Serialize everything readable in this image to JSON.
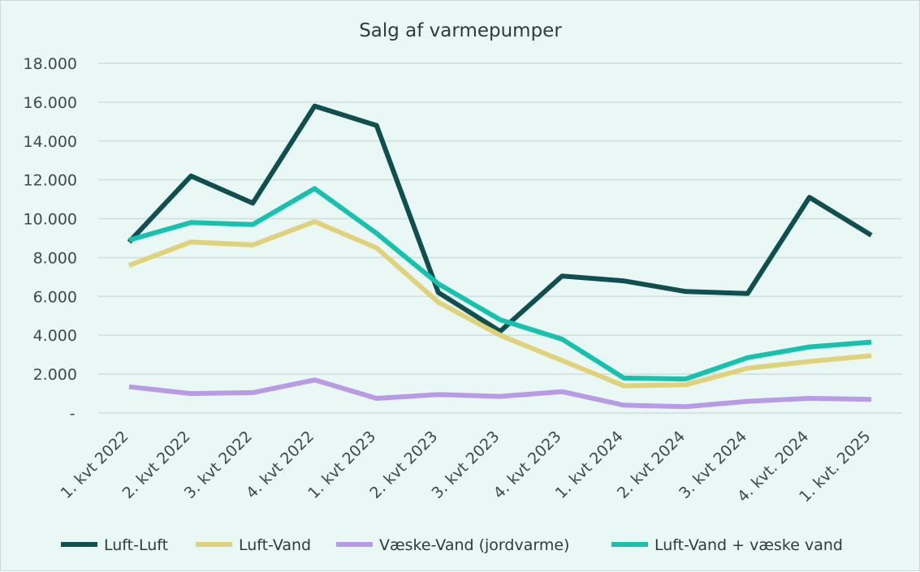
{
  "chart_data": {
    "type": "line",
    "title": "Salg af varmepumper",
    "xlabel": "",
    "ylabel": "",
    "ylim": [
      0,
      18000
    ],
    "y_ticks": [
      {
        "value": 0,
        "label": "-"
      },
      {
        "value": 2000,
        "label": "2.000"
      },
      {
        "value": 4000,
        "label": "4.000"
      },
      {
        "value": 6000,
        "label": "6.000"
      },
      {
        "value": 8000,
        "label": "8.000"
      },
      {
        "value": 10000,
        "label": "10.000"
      },
      {
        "value": 12000,
        "label": "12.000"
      },
      {
        "value": 14000,
        "label": "14.000"
      },
      {
        "value": 16000,
        "label": "16.000"
      },
      {
        "value": 18000,
        "label": "18.000"
      }
    ],
    "categories": [
      "1. kvt 2022",
      "2. kvt 2022",
      "3. kvt 2022",
      "4. kvt 2022",
      "1. kvt 2023",
      "2. kvt 2023",
      "3. kvt 2023",
      "4. kvt 2023",
      "1. kvt 2024",
      "2. kvt 2024",
      "3. kvt 2024",
      "4. kvt. 2024",
      "1. kvt. 2025"
    ],
    "grid": true,
    "legend_position": "bottom",
    "series": [
      {
        "name": "Luft-Luft",
        "color": "#0f4f4f",
        "values": [
          8800,
          12200,
          10800,
          15800,
          14800,
          6200,
          4200,
          7050,
          6800,
          6250,
          6150,
          11100,
          9150
        ]
      },
      {
        "name": "Luft-Vand",
        "color": "#e0d27a",
        "values": [
          7600,
          8800,
          8650,
          9850,
          8500,
          5700,
          4000,
          2700,
          1400,
          1450,
          2300,
          2650,
          2950
        ]
      },
      {
        "name": "Væske-Vand (jordvarme)",
        "color": "#b89ae6",
        "values": [
          1350,
          1000,
          1050,
          1700,
          750,
          950,
          850,
          1100,
          400,
          320,
          600,
          750,
          700
        ]
      },
      {
        "name": "Luft-Vand + væske vand",
        "color": "#16c2ad",
        "values": [
          8900,
          9800,
          9700,
          11550,
          9250,
          6650,
          4800,
          3800,
          1800,
          1750,
          2850,
          3400,
          3650
        ]
      }
    ]
  }
}
